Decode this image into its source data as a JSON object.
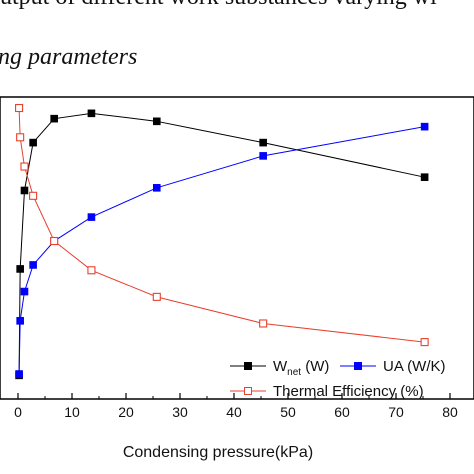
{
  "caption": {
    "line1": "utput of different work substances varying wi",
    "line2": "ng parameters"
  },
  "chart_data": {
    "type": "line",
    "xlabel": "Condensing pressure(kPa)",
    "xlim": [
      -2,
      85
    ],
    "xticks": [
      0,
      10,
      20,
      30,
      40,
      50,
      60,
      70,
      80
    ],
    "ylim": [
      0,
      1
    ],
    "grid": false,
    "legend_position": "bottom-right",
    "series": [
      {
        "name": "W_net (W)",
        "legend_main": "W",
        "legend_sub": "net",
        "legend_tail": " (W)",
        "color": "#000000",
        "marker": "filled-square",
        "x": [
          0.2,
          0.4,
          1.2,
          2.8,
          6.7,
          13.6,
          25.7,
          45.4,
          75.3
        ],
        "y": [
          0.025,
          0.425,
          0.72,
          0.9,
          0.99,
          1.01,
          0.98,
          0.9,
          0.77
        ]
      },
      {
        "name": "UA (W/K)",
        "legend_main": "UA (W/K)",
        "color": "#0000ff",
        "marker": "filled-square",
        "x": [
          0.2,
          0.4,
          1.2,
          2.8,
          6.7,
          13.6,
          25.7,
          45.4,
          75.3
        ],
        "y": [
          0.03,
          0.23,
          0.34,
          0.44,
          0.53,
          0.62,
          0.73,
          0.85,
          0.96
        ]
      },
      {
        "name": "Thermal Efficiency (%)",
        "legend_main": "Thermal Efficiency (%)",
        "color": "#e8402f",
        "marker": "open-square",
        "x": [
          0.2,
          0.4,
          1.2,
          2.8,
          6.7,
          13.6,
          25.7,
          45.4,
          75.3
        ],
        "y": [
          1.03,
          0.92,
          0.81,
          0.7,
          0.53,
          0.42,
          0.32,
          0.22,
          0.15
        ]
      }
    ]
  }
}
